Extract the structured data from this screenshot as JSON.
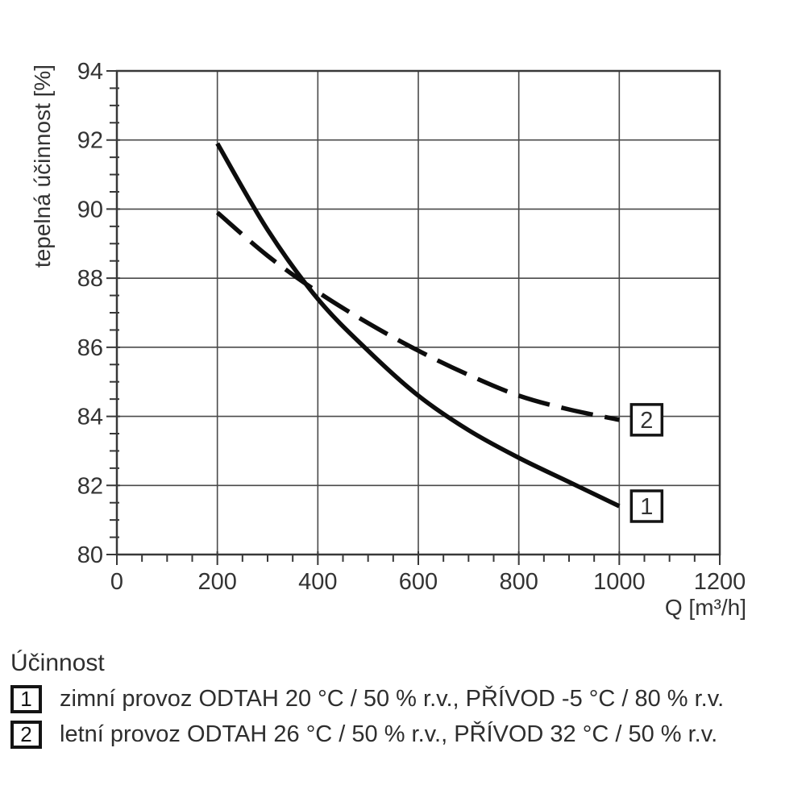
{
  "chart_data": {
    "type": "line",
    "title": "",
    "xlabel": "Q [m³/h]",
    "ylabel": "tepelná účinnost [%]",
    "xlim": [
      0,
      1200
    ],
    "ylim": [
      80,
      94
    ],
    "x_major_step": 200,
    "x_minor_step": 50,
    "y_major_step": 2,
    "y_minor_step": 0.5,
    "grid": true,
    "legend_position": "below",
    "series": [
      {
        "marker_label": "1",
        "name": "zimní provoz",
        "style": "solid",
        "x": [
          200,
          300,
          400,
          500,
          600,
          700,
          800,
          900,
          1000
        ],
        "y": [
          91.9,
          89.4,
          87.4,
          85.9,
          84.6,
          83.6,
          82.8,
          82.1,
          81.4
        ]
      },
      {
        "marker_label": "2",
        "name": "letní provoz",
        "style": "dashed",
        "x": [
          200,
          300,
          400,
          500,
          600,
          700,
          800,
          900,
          1000
        ],
        "y": [
          89.9,
          88.65,
          87.6,
          86.7,
          85.9,
          85.2,
          84.6,
          84.2,
          83.9
        ]
      }
    ]
  },
  "legend": {
    "title": "Účinnost",
    "items": [
      {
        "marker": "1",
        "text": "zimní provoz ODTAH 20 °C / 50 % r.v., PŘÍVOD -5 °C / 80 % r.v."
      },
      {
        "marker": "2",
        "text": "letní provoz ODTAH 26 °C / 50 % r.v., PŘÍVOD 32 °C / 50 % r.v."
      }
    ]
  },
  "colors": {
    "background": "#ffffff",
    "curve": "#0d0d0d",
    "grid": "#4a4a4a",
    "axis": "#383838",
    "text": "#333333",
    "legend_text": "#2e2e2e"
  }
}
